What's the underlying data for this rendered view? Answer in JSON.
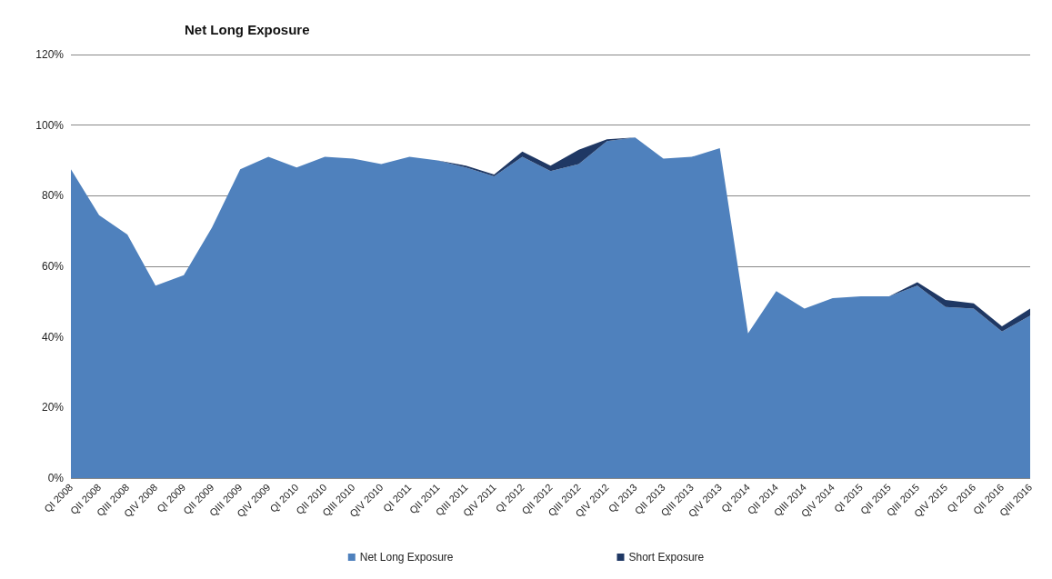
{
  "chart_data": {
    "type": "area",
    "title": "Net Long Exposure",
    "stacked": true,
    "categories": [
      "QI 2008",
      "QII 2008",
      "QIII 2008",
      "QIV 2008",
      "QI 2009",
      "QII 2009",
      "QIII 2009",
      "QIV 2009",
      "QI 2010",
      "QII 2010",
      "QIII 2010",
      "QIV 2010",
      "QI 2011",
      "QII 2011",
      "QIII 2011",
      "QIV 2011",
      "QI 2012",
      "QII 2012",
      "QIII 2012",
      "QIV 2012",
      "QI 2013",
      "QII 2013",
      "QIII 2013",
      "QIV 2013",
      "QI 2014",
      "QII 2014",
      "QIII 2014",
      "QIV 2014",
      "QI 2015",
      "QII 2015",
      "QIII 2015",
      "QIV 2015",
      "QI 2016",
      "QII 2016",
      "QIII 2016"
    ],
    "series": [
      {
        "name": "Net Long Exposure",
        "color": "#4f81bd",
        "values": [
          87.5,
          74.5,
          69,
          54.5,
          57.5,
          71,
          87.5,
          91,
          88,
          91,
          90.5,
          89,
          91,
          90,
          88,
          85.5,
          91,
          87,
          89,
          95.5,
          96.5,
          90.5,
          91,
          93.5,
          41,
          53,
          48,
          51,
          51.5,
          51.5,
          54.5,
          48.5,
          48,
          41.5,
          46
        ]
      },
      {
        "name": "Short Exposure",
        "color": "#1f3864",
        "values": [
          0,
          0,
          0,
          0,
          0,
          0,
          0,
          0,
          0,
          0,
          0,
          0,
          0,
          0,
          0.5,
          0.5,
          1.5,
          1.5,
          4,
          0.5,
          0,
          0,
          0,
          0,
          0,
          0,
          0,
          0,
          0,
          0,
          1,
          2,
          1.5,
          1.5,
          2
        ]
      }
    ],
    "ylim": [
      0,
      120
    ],
    "yticks": [
      {
        "value": 0,
        "label": "0%"
      },
      {
        "value": 20,
        "label": "20%"
      },
      {
        "value": 40,
        "label": "40%"
      },
      {
        "value": 60,
        "label": "60%"
      },
      {
        "value": 80,
        "label": "80%"
      },
      {
        "value": 100,
        "label": "100%"
      },
      {
        "value": 120,
        "label": "120%"
      }
    ],
    "grid": "y",
    "legend": "bottom"
  }
}
